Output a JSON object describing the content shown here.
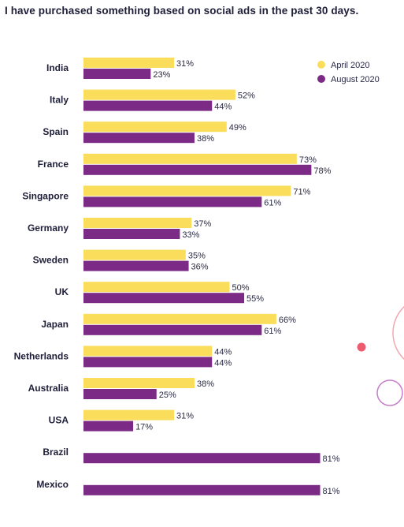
{
  "chart_data": {
    "type": "bar",
    "orientation": "horizontal",
    "title": "I have purchased something based on social ads in the past 30 days.",
    "categories": [
      "India",
      "Italy",
      "Spain",
      "France",
      "Singapore",
      "Germany",
      "Sweden",
      "UK",
      "Japan",
      "Netherlands",
      "Australia",
      "USA",
      "Brazil",
      "Mexico"
    ],
    "series": [
      {
        "name": "April 2020",
        "color": "#f9dd5b",
        "values": [
          31,
          52,
          49,
          73,
          71,
          37,
          35,
          50,
          66,
          44,
          38,
          31,
          null,
          null
        ],
        "labels": [
          "31%",
          "52%",
          "49%",
          "73%",
          "71%",
          "37%",
          "35%",
          "50%",
          "66%",
          "44%",
          "38%",
          "31%",
          "",
          ""
        ]
      },
      {
        "name": "August 2020",
        "color": "#7b2a86",
        "values": [
          23,
          44,
          38,
          78,
          61,
          33,
          36,
          55,
          61,
          44,
          25,
          17,
          81,
          81
        ],
        "labels": [
          "23%",
          "44%",
          "38%",
          "78%",
          "61%",
          "33%",
          "36%",
          "55%",
          "61%",
          "44%",
          "25%",
          "17%",
          "81%",
          "81%"
        ]
      }
    ],
    "legend_position": "top-right",
    "grid": false
  },
  "decor": {
    "dot_color": "#ee5a6f",
    "ring_color": "#c77dc9",
    "ring2_color": "#f3a7b0"
  }
}
